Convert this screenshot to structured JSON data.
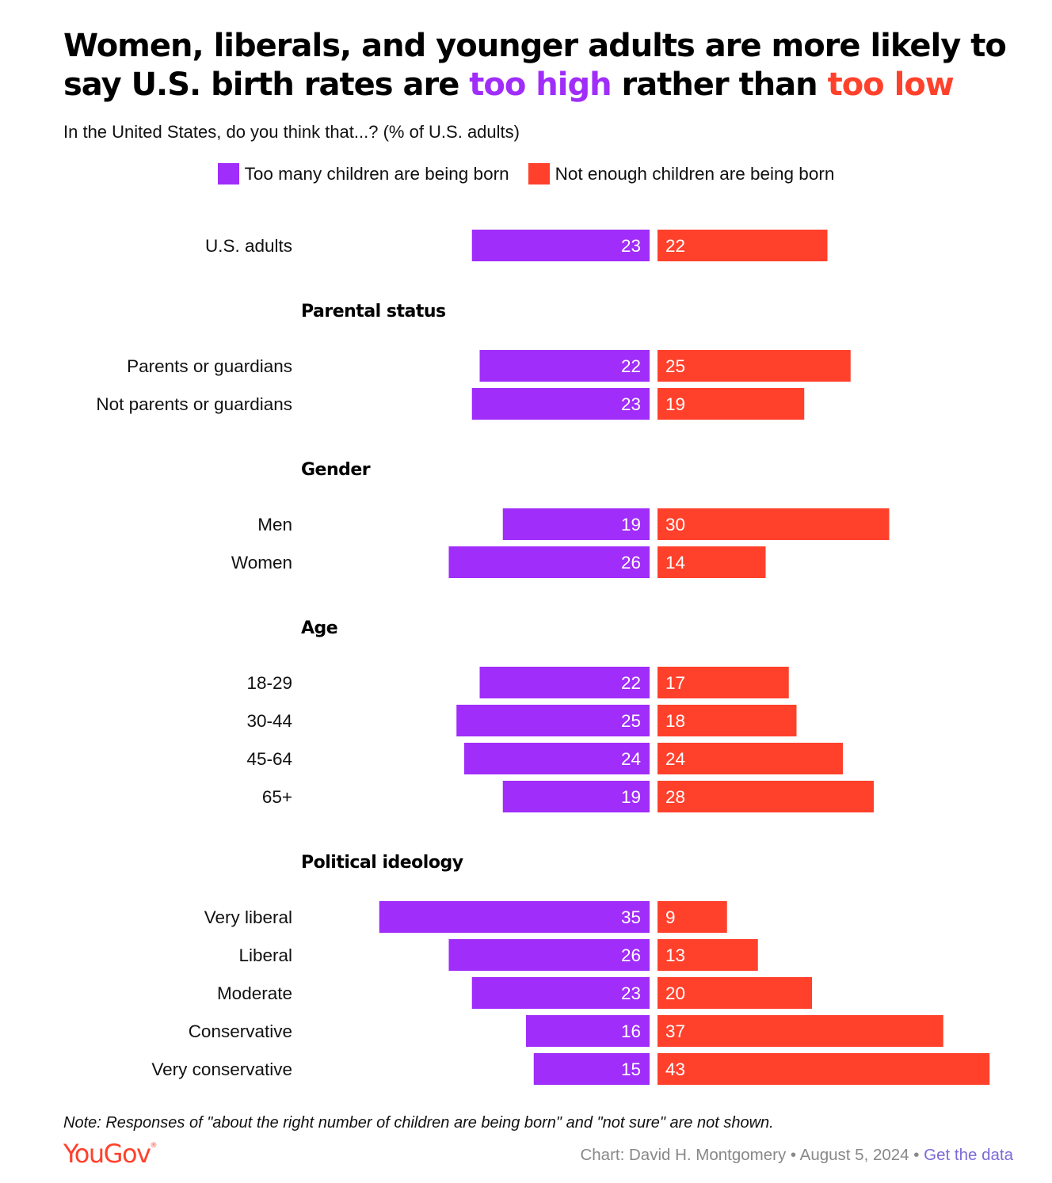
{
  "title_part1": "Women, liberals, and younger adults are more likely to say U.S. birth rates are ",
  "title_high": "too high",
  "title_mid": " rather than ",
  "title_low": "too low",
  "subtitle": "In the United States, do you think that...? (% of U.S. adults)",
  "legend": {
    "too_many": "Too many children are being born",
    "not_enough": "Not enough children are being born"
  },
  "colors": {
    "too_many": "#a02df9",
    "not_enough": "#ff412c"
  },
  "note": "Note: Responses of \"about the right number of children are being born\" and \"not sure\" are not shown.",
  "logo": "YouGov",
  "logo_mark": "®",
  "credit": "Chart: David H. Montgomery • August 5, 2024 • ",
  "credit_link": "Get the data",
  "chart_data": {
    "type": "bar",
    "orientation": "horizontal-diverging",
    "series": [
      {
        "name": "Too many children are being born",
        "color": "#a02df9"
      },
      {
        "name": "Not enough children are being born",
        "color": "#ff412c"
      }
    ],
    "groups": [
      {
        "header": "",
        "rows": [
          {
            "label": "U.S. adults",
            "too_many": 23,
            "not_enough": 22
          }
        ]
      },
      {
        "header": "Parental status",
        "rows": [
          {
            "label": "Parents or guardians",
            "too_many": 22,
            "not_enough": 25
          },
          {
            "label": "Not parents or guardians",
            "too_many": 23,
            "not_enough": 19
          }
        ]
      },
      {
        "header": "Gender",
        "rows": [
          {
            "label": "Men",
            "too_many": 19,
            "not_enough": 30
          },
          {
            "label": "Women",
            "too_many": 26,
            "not_enough": 14
          }
        ]
      },
      {
        "header": "Age",
        "rows": [
          {
            "label": "18-29",
            "too_many": 22,
            "not_enough": 17
          },
          {
            "label": "30-44",
            "too_many": 25,
            "not_enough": 18
          },
          {
            "label": "45-64",
            "too_many": 24,
            "not_enough": 24
          },
          {
            "label": "65+",
            "too_many": 19,
            "not_enough": 28
          }
        ]
      },
      {
        "header": "Political ideology",
        "rows": [
          {
            "label": "Very liberal",
            "too_many": 35,
            "not_enough": 9
          },
          {
            "label": "Liberal",
            "too_many": 26,
            "not_enough": 13
          },
          {
            "label": "Moderate",
            "too_many": 23,
            "not_enough": 20
          },
          {
            "label": "Conservative",
            "too_many": 16,
            "not_enough": 37
          },
          {
            "label": "Very conservative",
            "too_many": 15,
            "not_enough": 43
          }
        ]
      }
    ]
  }
}
